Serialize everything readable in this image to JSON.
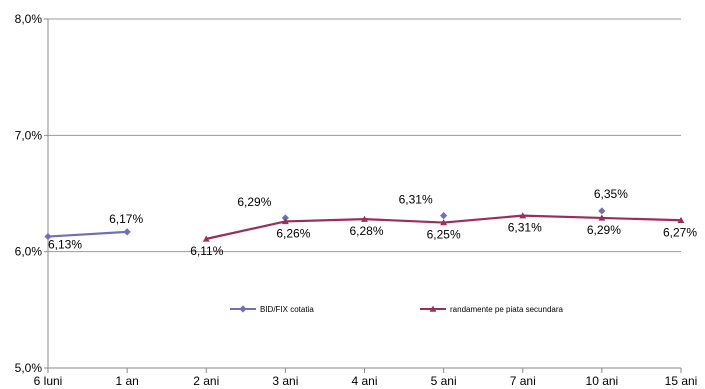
{
  "chart_data": {
    "type": "line",
    "categories": [
      "6 luni",
      "1 an",
      "2 ani",
      "3 ani",
      "4 ani",
      "5 ani",
      "7 ani",
      "10 ani",
      "15 ani"
    ],
    "ylim": [
      5.0,
      8.0
    ],
    "y_ticks": [
      5.0,
      6.0,
      7.0,
      8.0
    ],
    "y_tick_labels": [
      "5,0%",
      "6,0%",
      "7,0%",
      "8,0%"
    ],
    "grid": "horizontal",
    "legend_position": "bottom-center",
    "series": [
      {
        "name": "BID/FIX cotatia",
        "color": "#7070b8",
        "marker": "diamond",
        "values": [
          6.13,
          6.17,
          null,
          6.29,
          null,
          6.31,
          null,
          6.35,
          null
        ],
        "labels": [
          "6,13%",
          "6,17%",
          null,
          "6,29%",
          null,
          "6,31%",
          null,
          "6,35%",
          null
        ]
      },
      {
        "name": "randamente pe piata secundara",
        "color": "#9b2d5a",
        "marker": "triangle",
        "values": [
          null,
          null,
          6.11,
          6.26,
          6.28,
          6.25,
          6.31,
          6.29,
          6.27
        ],
        "labels": [
          null,
          null,
          "6,11%",
          "6,26%",
          "6,28%",
          "6,25%",
          "6,31%",
          "6,29%",
          "6,27%"
        ]
      }
    ]
  }
}
